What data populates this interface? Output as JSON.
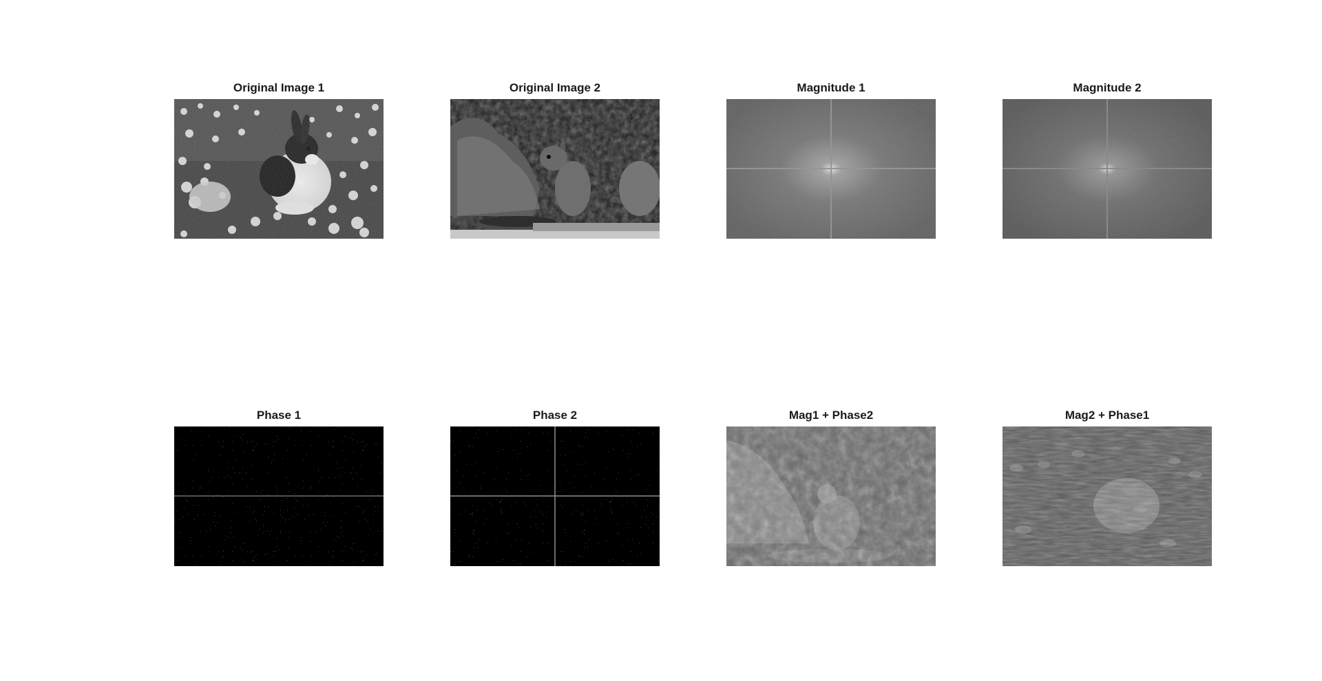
{
  "panels": [
    {
      "id": "original-image-1",
      "title": "Original Image 1",
      "kind": "photo-rabbit"
    },
    {
      "id": "original-image-2",
      "title": "Original Image 2",
      "kind": "photo-squirrel"
    },
    {
      "id": "magnitude-1",
      "title": "Magnitude 1",
      "kind": "fft-magnitude"
    },
    {
      "id": "magnitude-2",
      "title": "Magnitude 2",
      "kind": "fft-magnitude"
    },
    {
      "id": "phase-1",
      "title": "Phase 1",
      "kind": "fft-phase"
    },
    {
      "id": "phase-2",
      "title": "Phase 2",
      "kind": "fft-phase"
    },
    {
      "id": "mag1-phase2",
      "title": "Mag1 + Phase2",
      "kind": "recon-squirrel"
    },
    {
      "id": "mag2-phase1",
      "title": "Mag2 + Phase1",
      "kind": "recon-rabbit"
    }
  ]
}
